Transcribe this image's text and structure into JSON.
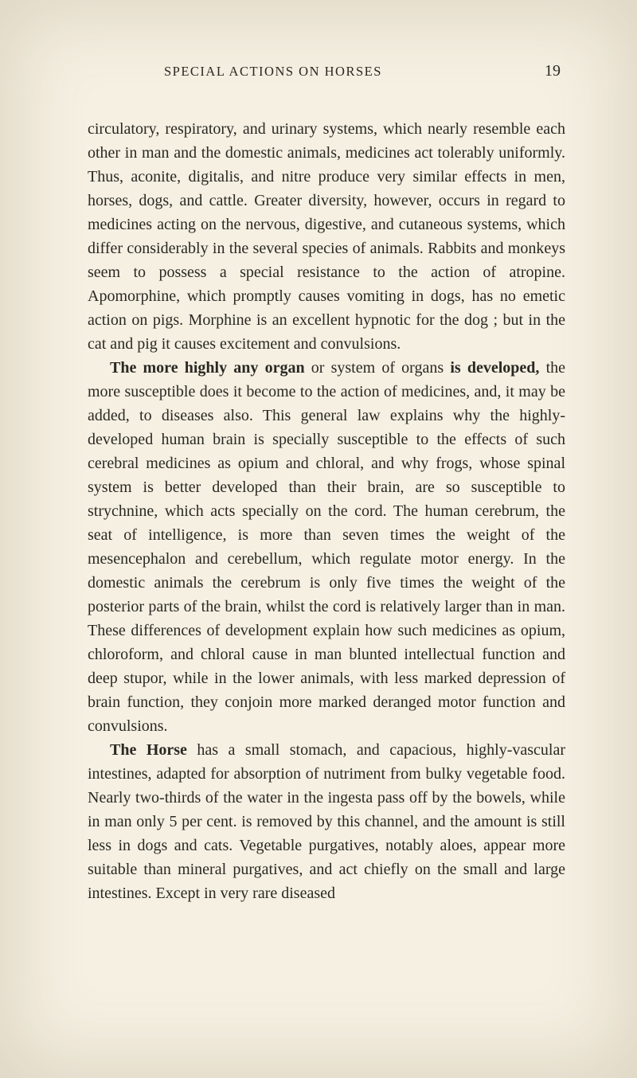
{
  "page": {
    "running_head": "SPECIAL ACTIONS ON HORSES",
    "number": "19",
    "background_color": "#f5f0e2",
    "text_color": "#2a2823",
    "body_font_size_pt": 15,
    "line_height": 1.5,
    "paragraphs": [
      {
        "segments": [
          {
            "text": "circulatory, respiratory, and urinary systems, which nearly resemble each other in man and the domestic animals, medicines act tolerably uniformly. Thus, aconite, digitalis, and nitre produce very similar effects in men, horses, dogs, and cattle. Greater diversity, however, occurs in regard to medicines acting on the nervous, digestive, and cutaneous systems, which differ considerably in the several species of animals. Rabbits and monkeys seem to possess a special resistance to the action of atropine. Apomorphine, which promptly causes vomiting in dogs, has no emetic action on pigs. Morphine is an excellent hypnotic for the dog ; but in the cat and pig it causes excitement and convulsions.",
            "bold": false
          }
        ]
      },
      {
        "segments": [
          {
            "text": "The more highly any organ",
            "bold": true
          },
          {
            "text": " or system of organs ",
            "bold": false
          },
          {
            "text": "is de­veloped,",
            "bold": true
          },
          {
            "text": " the more susceptible does it become to the action of medicines, and, it may be added, to diseases also. This general law explains why the highly-developed human brain is specially susceptible to the effects of such cerebral medi­cines as opium and chloral, and why frogs, whose spinal system is better developed than their brain, are so sus­ceptible to strychnine, which acts specially on the cord. The human cerebrum, the seat of intelligence, is more than seven times the weight of the mesencephalon and cerebellum, which regulate motor energy. In the domestic animals the cerebrum is only five times the weight of the posterior parts of the brain, whilst the cord is relatively larger than in man. These differences of development explain how such medi­cines as opium, chloroform, and chloral cause in man blunted intellectual function and deep stupor, while in the lower animals, with less marked depression of brain function, they conjoin more marked deranged motor function and con­vulsions.",
            "bold": false
          }
        ]
      },
      {
        "segments": [
          {
            "text": "The Horse",
            "bold": true
          },
          {
            "text": " has a small stomach, and capacious, highly-vascular intestines, adapted for absorption of nutriment from bulky vegetable food. Nearly two-thirds of the water in the ingesta pass off by the bowels, while in man only 5 per cent. is removed by this channel, and the amount is still less in dogs and cats. Vegetable purgatives, notably aloes, appear more suitable than mineral purgatives, and act chiefly on the small and large intestines. Except in very rare diseased",
            "bold": false
          }
        ]
      }
    ]
  }
}
